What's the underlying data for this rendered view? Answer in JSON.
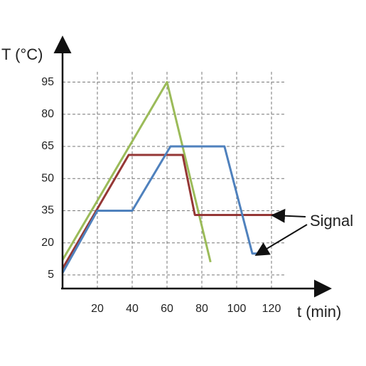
{
  "chart_data": {
    "type": "line",
    "ylabel": "T (°C)",
    "xlabel": "t (min)",
    "annotation": "Signal",
    "xlim": [
      0,
      150
    ],
    "ylim": [
      0,
      110
    ],
    "xticks": [
      20,
      40,
      60,
      80,
      100,
      120
    ],
    "yticks": [
      5,
      20,
      35,
      50,
      65,
      80,
      95
    ],
    "grid": true,
    "series": [
      {
        "color": "#9bbb59",
        "x": [
          0,
          60,
          85
        ],
        "values": [
          12,
          95,
          11
        ]
      },
      {
        "color": "#953735",
        "x": [
          0,
          38,
          69,
          76,
          122
        ],
        "values": [
          8,
          61,
          61,
          33,
          33
        ]
      },
      {
        "color": "#4f81bd",
        "x": [
          0,
          20,
          40,
          62,
          93,
          109,
          115
        ],
        "values": [
          6,
          35,
          35,
          65,
          65,
          15,
          15
        ]
      }
    ]
  }
}
